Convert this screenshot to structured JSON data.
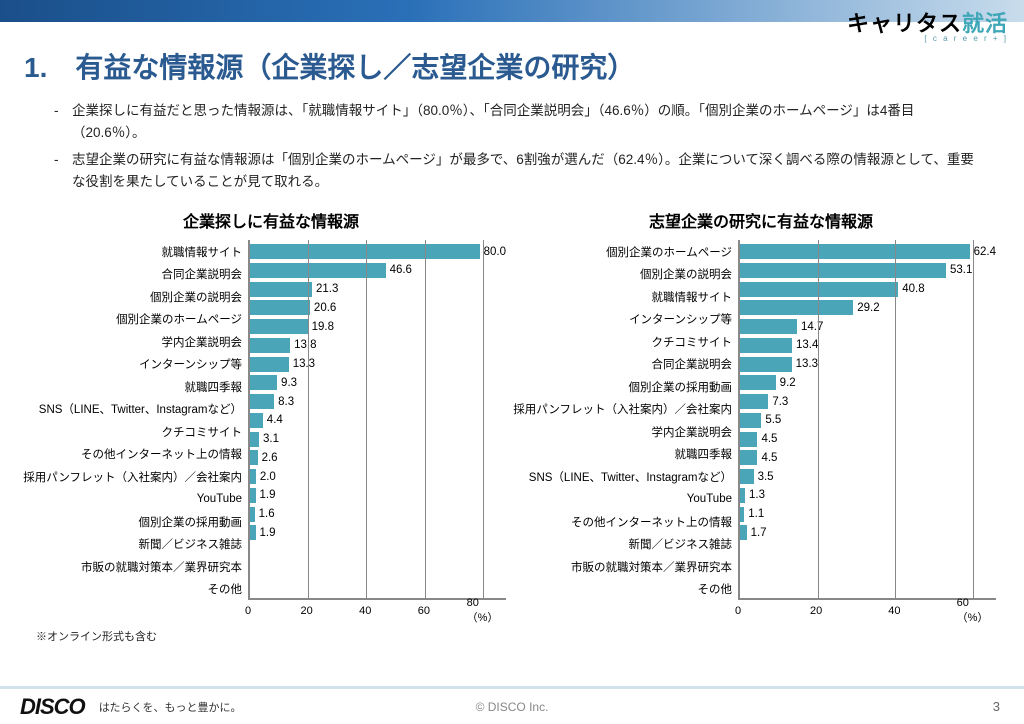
{
  "brand": {
    "main": "キャリタス",
    "acc": "就活",
    "sub": "[ c a r e e r + ]"
  },
  "title": "1.　有益な情報源（企業探し／志望企業の研究）",
  "bullets": [
    "企業探しに有益だと思った情報源は、「就職情報サイト」（80.0％）、「合同企業説明会」（46.6％）の順。「個別企業のホームページ」は4番目（20.6％）。",
    "志望企業の研究に有益な情報源は「個別企業のホームページ」が最多で、6割強が選んだ（62.4％）。企業について深く調べる際の情報源として、重要な役割を果たしていることが見て取れる。"
  ],
  "chart_left": {
    "title": "企業探しに有益な情報源",
    "type": "bar",
    "bar_color": "#4aa5b8",
    "max": 88,
    "ticks": [
      0,
      20,
      40,
      60,
      80
    ],
    "axis_unit": "（%）",
    "items": [
      {
        "label": "就職情報サイト",
        "value": 80.0
      },
      {
        "label": "合同企業説明会",
        "value": 46.6
      },
      {
        "label": "個別企業の説明会",
        "value": 21.3
      },
      {
        "label": "個別企業のホームページ",
        "value": 20.6
      },
      {
        "label": "学内企業説明会",
        "value": 19.8
      },
      {
        "label": "インターンシップ等",
        "value": 13.8
      },
      {
        "label": "就職四季報",
        "value": 13.3
      },
      {
        "label": "SNS（LINE、Twitter、Instagramなど）",
        "value": 9.3
      },
      {
        "label": "クチコミサイト",
        "value": 8.3
      },
      {
        "label": "その他インターネット上の情報",
        "value": 4.4
      },
      {
        "label": "採用パンフレット（入社案内）／会社案内",
        "value": 3.1
      },
      {
        "label": "YouTube",
        "value": 2.6
      },
      {
        "label": "個別企業の採用動画",
        "value": 2.0
      },
      {
        "label": "新聞／ビジネス雑誌",
        "value": 1.9
      },
      {
        "label": "市販の就職対策本／業界研究本",
        "value": 1.6
      },
      {
        "label": "その他",
        "value": 1.9
      }
    ]
  },
  "chart_right": {
    "title": "志望企業の研究に有益な情報源",
    "type": "bar",
    "bar_color": "#4aa5b8",
    "max": 66,
    "ticks": [
      0,
      20,
      40,
      60
    ],
    "axis_unit": "（%）",
    "items": [
      {
        "label": "個別企業のホームページ",
        "value": 62.4
      },
      {
        "label": "個別企業の説明会",
        "value": 53.1
      },
      {
        "label": "就職情報サイト",
        "value": 40.8
      },
      {
        "label": "インターンシップ等",
        "value": 29.2
      },
      {
        "label": "クチコミサイト",
        "value": 14.7
      },
      {
        "label": "合同企業説明会",
        "value": 13.4
      },
      {
        "label": "個別企業の採用動画",
        "value": 13.3
      },
      {
        "label": "採用パンフレット（入社案内）／会社案内",
        "value": 9.2
      },
      {
        "label": "学内企業説明会",
        "value": 7.3
      },
      {
        "label": "就職四季報",
        "value": 5.5
      },
      {
        "label": "SNS（LINE、Twitter、Instagramなど）",
        "value": 4.5
      },
      {
        "label": "YouTube",
        "value": 4.5
      },
      {
        "label": "その他インターネット上の情報",
        "value": 3.5
      },
      {
        "label": "新聞／ビジネス雑誌",
        "value": 1.3
      },
      {
        "label": "市販の就職対策本／業界研究本",
        "value": 1.1
      },
      {
        "label": "その他",
        "value": 1.7
      }
    ]
  },
  "footnote": "※オンライン形式も含む",
  "footer": {
    "logo": "DISCO",
    "tag": "はたらくを、もっと豊かに。",
    "copy": "© DISCO Inc.",
    "page": "3"
  }
}
